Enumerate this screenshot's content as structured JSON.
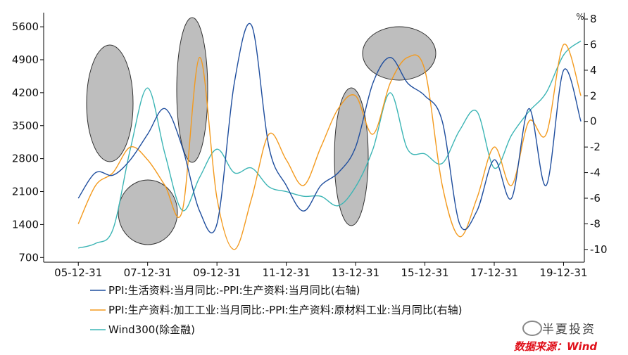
{
  "colors": {
    "series1": "#1f4e9e",
    "series2": "#f39a1e",
    "series3": "#3cb5b5",
    "ellipse_fill": "#a8a8a8",
    "axis": "#000000"
  },
  "watermark": {
    "brand": "半夏投资",
    "source": "数据来源：Wind"
  },
  "chart_data": {
    "type": "line",
    "x_tick_labels": [
      "05-12-31",
      "07-12-31",
      "09-12-31",
      "11-12-31",
      "13-12-31",
      "15-12-31",
      "17-12-31",
      "19-12-31"
    ],
    "x": [
      2006.0,
      2006.5,
      2007.0,
      2007.5,
      2008.0,
      2008.5,
      2009.0,
      2009.5,
      2010.0,
      2010.5,
      2011.0,
      2011.5,
      2012.0,
      2012.5,
      2013.0,
      2013.5,
      2014.0,
      2014.5,
      2015.0,
      2015.5,
      2016.0,
      2016.5,
      2017.0,
      2017.5,
      2018.0,
      2018.5,
      2019.0,
      2019.5,
      2020.0,
      2020.5
    ],
    "left_axis": {
      "ylim": [
        600,
        5900
      ],
      "ticks": [
        700,
        1400,
        2100,
        2800,
        3500,
        4200,
        4900,
        5600
      ]
    },
    "right_axis": {
      "unit": "%",
      "ylim": [
        -11,
        8.5
      ],
      "ticks": [
        -10,
        -8,
        -6,
        -4,
        -2,
        0,
        2,
        4,
        6,
        8
      ]
    },
    "series": [
      {
        "name": "PPI:生活资料:当月同比:-PPI:生产资料:当月同比(右轴)",
        "axis": "right",
        "values": [
          -6,
          -4,
          -4.2,
          -3,
          -1,
          1,
          -2,
          -7,
          -8,
          3,
          7.5,
          -2,
          -5,
          -7,
          -5,
          -4,
          -2,
          3,
          5,
          3,
          2,
          0,
          -8,
          -7,
          -3,
          -6,
          1,
          -5,
          4,
          0
        ]
      },
      {
        "name": "PPI:生产资料:加工工业:当月同比:-PPI:生产资料:原材料工业:当月同比(右轴)",
        "axis": "right",
        "values": [
          -8,
          -5,
          -4,
          -2,
          -3,
          -5,
          -7,
          5,
          -6,
          -10,
          -6,
          -1,
          -3,
          -5,
          -2,
          1,
          2,
          -1,
          3,
          5,
          4,
          -5,
          -9,
          -6,
          -2,
          -5,
          0,
          -1,
          6,
          2
        ]
      },
      {
        "name": "Wind300(除金融)",
        "axis": "left",
        "values": [
          900,
          1000,
          1300,
          3000,
          4300,
          2900,
          1700,
          2400,
          3000,
          2500,
          2600,
          2200,
          2100,
          2000,
          2000,
          1800,
          2200,
          3000,
          4200,
          3000,
          2900,
          2700,
          3400,
          3800,
          2600,
          3300,
          3800,
          4200,
          5000,
          5300
        ]
      }
    ],
    "annotations": "grey ellipses highlighting regions"
  }
}
